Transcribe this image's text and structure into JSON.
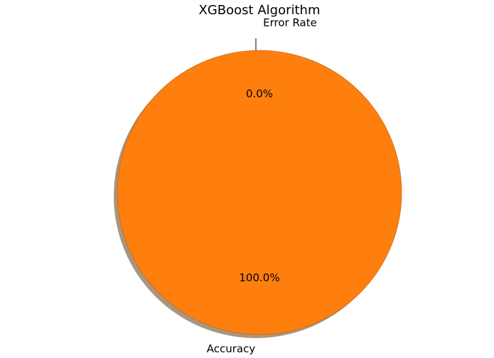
{
  "chart_data": {
    "type": "pie",
    "title": "XGBoost Algorithm",
    "slices": [
      {
        "label": "Error Rate",
        "value": 0.0,
        "pct_label": "0.0%",
        "color": "#1f77b4"
      },
      {
        "label": "Accuracy",
        "value": 100.0,
        "pct_label": "100.0%",
        "color": "#ff7f0e"
      }
    ],
    "start_angle_deg": 90,
    "shadow": true,
    "edge_color": "#b5651d"
  }
}
